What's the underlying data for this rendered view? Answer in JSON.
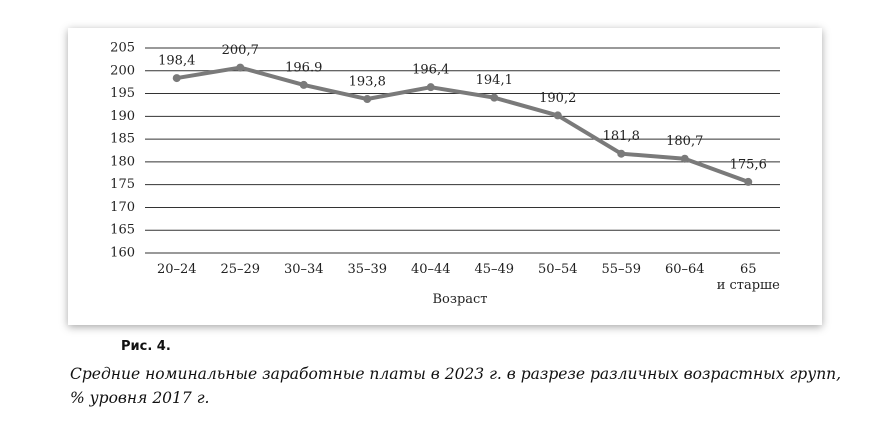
{
  "chart_data": {
    "type": "line",
    "figure_label": "Рис. 4.",
    "caption": "Средние номинальные заработные платы в 2023 г. в разрезе различных возрастных групп,\n% уровня 2017 г.",
    "x_label": "Возраст",
    "categories": [
      "20–24",
      "25–29",
      "30–34",
      "35–39",
      "40–44",
      "45–49",
      "50–54",
      "55–59",
      "60–64",
      "65\nи старше"
    ],
    "values": [
      198.4,
      200.7,
      196.9,
      193.8,
      196.4,
      194.1,
      190.2,
      181.8,
      180.7,
      175.6
    ],
    "value_labels": [
      "198,4",
      "200,7",
      "196.9",
      "193,8",
      "196,4",
      "194,1",
      "190,2",
      "181,8",
      "180,7",
      "175,6"
    ],
    "color": "#7a7a7a",
    "ylim": [
      160,
      205
    ],
    "yticks": [
      160,
      165,
      170,
      175,
      180,
      185,
      190,
      195,
      200,
      205
    ],
    "grid": true
  }
}
